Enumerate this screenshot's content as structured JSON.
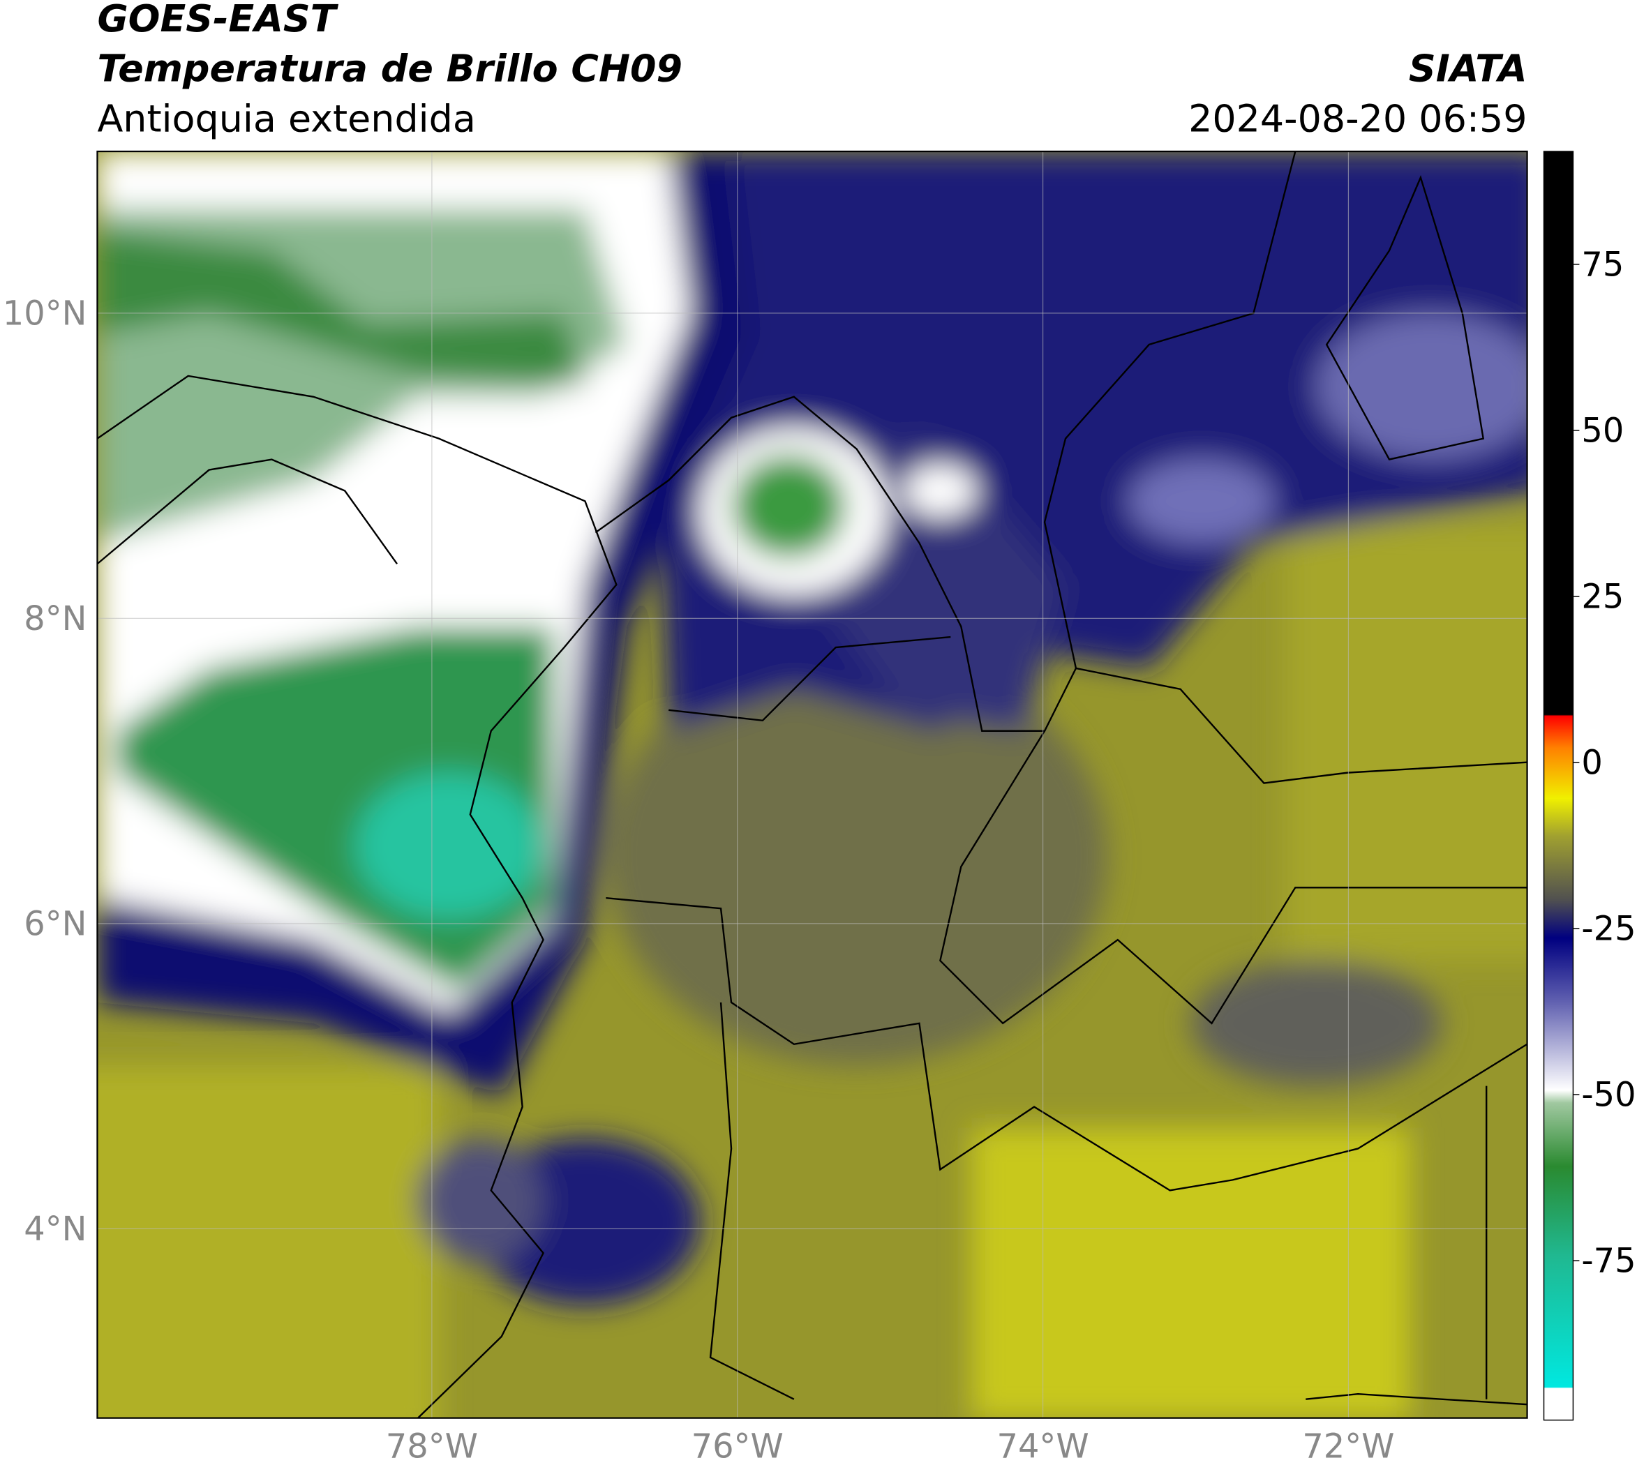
{
  "header": {
    "title": "GOES-EAST",
    "subtitle": "Temperatura de Brillo CH09",
    "region": "Antioquia extendida",
    "source": "SIATA",
    "datetime": "2024-08-20 06:59"
  },
  "map": {
    "xlim": [
      -80.19,
      -70.83
    ],
    "ylim": [
      2.76,
      11.06
    ],
    "xticks": [
      {
        "value": -78,
        "label": "78°W"
      },
      {
        "value": -76,
        "label": "76°W"
      },
      {
        "value": -74,
        "label": "74°W"
      },
      {
        "value": -72,
        "label": "72°W"
      }
    ],
    "yticks": [
      {
        "value": 4,
        "label": "4°N"
      },
      {
        "value": 6,
        "label": "6°N"
      },
      {
        "value": 8,
        "label": "8°N"
      },
      {
        "value": 10,
        "label": "10°N"
      }
    ]
  },
  "colorbar": {
    "lim": [
      -99,
      92
    ],
    "ticks": [
      -75,
      -50,
      -25,
      0,
      25,
      50,
      75
    ]
  }
}
